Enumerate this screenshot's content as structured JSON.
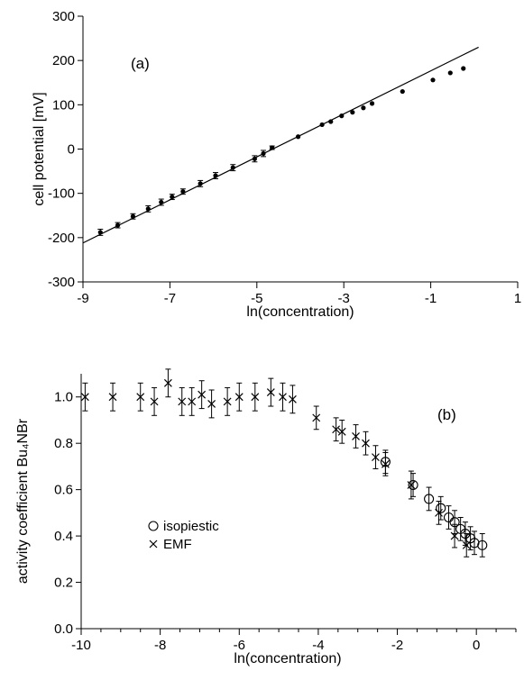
{
  "chart_data": [
    {
      "type": "scatter",
      "panel_label": "(a)",
      "xlabel": "ln(concentration)",
      "ylabel": "cell potential [mV]",
      "xlim": [
        -9,
        1
      ],
      "ylim": [
        -300,
        300
      ],
      "xticks": [
        -9,
        -7,
        -5,
        -3,
        -1,
        1
      ],
      "yticks": [
        -300,
        -200,
        -100,
        0,
        100,
        200,
        300
      ],
      "grid": false,
      "fit_line": {
        "x": [
          -9,
          0.1
        ],
        "y": [
          -212,
          230
        ]
      },
      "series": [
        {
          "marker": "dot",
          "x": [
            -8.6,
            -8.2,
            -7.85,
            -7.5,
            -7.2,
            -6.95,
            -6.7,
            -6.3,
            -5.95,
            -5.55,
            -5.05,
            -4.85,
            -4.65,
            -4.05,
            -3.5,
            -3.3,
            -3.05,
            -2.8,
            -2.55,
            -2.35,
            -1.65,
            -0.95,
            -0.55,
            -0.25
          ],
          "y": [
            -188,
            -172,
            -152,
            -135,
            -120,
            -108,
            -96,
            -78,
            -60,
            -42,
            -22,
            -10,
            3,
            28,
            55,
            62,
            75,
            83,
            93,
            103,
            130,
            156,
            172,
            182
          ],
          "err": [
            7,
            6,
            6,
            7,
            7,
            6,
            6,
            7,
            7,
            7,
            7,
            7,
            4,
            0,
            0,
            0,
            0,
            0,
            0,
            0,
            0,
            0,
            0,
            0
          ]
        }
      ]
    },
    {
      "type": "scatter",
      "panel_label": "(b)",
      "xlabel": "ln(concentration)",
      "ylabel": "activity coefficient Bu₄NBr",
      "xlim": [
        -10,
        1
      ],
      "ylim": [
        0,
        1.1
      ],
      "xticks": [
        -10,
        -8,
        -6,
        -4,
        -2,
        0
      ],
      "yticks": [
        0.0,
        0.2,
        0.4,
        0.6,
        0.8,
        1.0
      ],
      "ytick_labels": [
        "0.0",
        "0.2",
        "0.4",
        "0.6",
        "0.8",
        "1.0"
      ],
      "legend": {
        "position": "lower-left"
      },
      "series": [
        {
          "name": "isopiestic",
          "marker": "circle",
          "x": [
            -2.3,
            -1.6,
            -1.2,
            -0.9,
            -0.7,
            -0.55,
            -0.4,
            -0.28,
            -0.15,
            -0.05,
            0.15
          ],
          "y": [
            0.72,
            0.62,
            0.56,
            0.52,
            0.48,
            0.46,
            0.43,
            0.41,
            0.39,
            0.37,
            0.36
          ],
          "err": [
            0.05,
            0.05,
            0.05,
            0.05,
            0.05,
            0.05,
            0.05,
            0.05,
            0.05,
            0.05,
            0.05
          ]
        },
        {
          "name": "EMF",
          "marker": "x",
          "x": [
            -9.9,
            -9.2,
            -8.5,
            -8.15,
            -7.8,
            -7.45,
            -7.2,
            -6.95,
            -6.7,
            -6.3,
            -6.0,
            -5.6,
            -5.2,
            -4.9,
            -4.65,
            -4.05,
            -3.55,
            -3.4,
            -3.05,
            -2.8,
            -2.55,
            -2.3,
            -1.65,
            -0.95,
            -0.55,
            -0.25
          ],
          "y": [
            1.0,
            1.0,
            1.0,
            0.98,
            1.06,
            0.98,
            0.98,
            1.01,
            0.97,
            0.98,
            1.0,
            1.0,
            1.02,
            1.0,
            0.99,
            0.91,
            0.86,
            0.85,
            0.83,
            0.8,
            0.74,
            0.71,
            0.62,
            0.5,
            0.4,
            0.36
          ],
          "err": [
            0.06,
            0.06,
            0.06,
            0.06,
            0.06,
            0.06,
            0.06,
            0.06,
            0.06,
            0.06,
            0.06,
            0.06,
            0.06,
            0.06,
            0.06,
            0.05,
            0.05,
            0.05,
            0.05,
            0.05,
            0.05,
            0.05,
            0.06,
            0.05,
            0.05,
            0.05
          ]
        }
      ]
    }
  ]
}
